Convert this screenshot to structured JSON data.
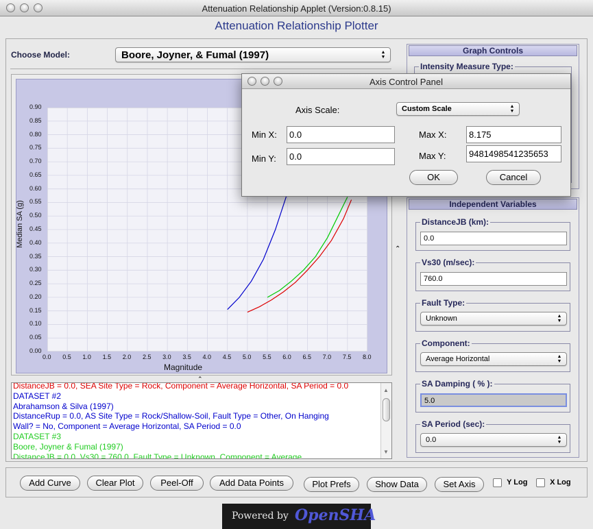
{
  "window": {
    "title": "Attenuation Relationship Applet (Version:0.8.15)"
  },
  "app": {
    "heading": "Attenuation Relationship Plotter"
  },
  "model": {
    "label": "Choose Model:",
    "selected": "Boore, Joyner, & Fumal (1997)"
  },
  "chart_data": {
    "type": "line",
    "xlabel": "Magnitude",
    "ylabel": "Median SA (g)",
    "xlim": [
      0.0,
      8.0
    ],
    "ylim": [
      0.0,
      0.9
    ],
    "xticks": [
      "0.0",
      "0.5",
      "1.0",
      "1.5",
      "2.0",
      "2.5",
      "3.0",
      "3.5",
      "4.0",
      "4.5",
      "5.0",
      "5.5",
      "6.0",
      "6.5",
      "7.0",
      "7.5",
      "8.0"
    ],
    "yticks": [
      "0.00",
      "0.05",
      "0.10",
      "0.15",
      "0.20",
      "0.25",
      "0.30",
      "0.35",
      "0.40",
      "0.45",
      "0.50",
      "0.55",
      "0.60",
      "0.65",
      "0.70",
      "0.75",
      "0.80",
      "0.85",
      "0.90"
    ],
    "grid": true,
    "series": [
      {
        "color": "#0000cc",
        "x": [
          4.5,
          4.8,
          5.1,
          5.4,
          5.7,
          5.9,
          6.1
        ],
        "y": [
          0.155,
          0.2,
          0.26,
          0.34,
          0.45,
          0.54,
          0.63
        ]
      },
      {
        "color": "#00cc00",
        "x": [
          5.5,
          5.8,
          6.1,
          6.4,
          6.7,
          7.0,
          7.3,
          7.5
        ],
        "y": [
          0.2,
          0.225,
          0.26,
          0.3,
          0.35,
          0.42,
          0.51,
          0.57
        ]
      },
      {
        "color": "#dd0000",
        "x": [
          5.0,
          5.3,
          5.6,
          5.9,
          6.2,
          6.5,
          6.8,
          7.1,
          7.4,
          7.6
        ],
        "y": [
          0.145,
          0.165,
          0.19,
          0.22,
          0.255,
          0.3,
          0.35,
          0.41,
          0.49,
          0.56
        ]
      }
    ]
  },
  "info": {
    "lines": [
      {
        "text": "DistanceJB = 0.0, SEA Site Type = Rock, Component = Average Horizontal, SA Period = 0.0",
        "color": "#dd0000"
      },
      {
        "text": "DATASET #2",
        "color": "#0000cc"
      },
      {
        "text": "Abrahamson & Silva (1997)",
        "color": "#0000cc"
      },
      {
        "text": "DistanceRup = 0.0, AS Site Type = Rock/Shallow-Soil, Fault Type = Other, On Hanging",
        "color": "#0000cc"
      },
      {
        "text": "Wall? = No, Component = Average Horizontal, SA Period = 0.0",
        "color": "#0000cc"
      },
      {
        "text": "DATASET #3",
        "color": "#22cc22"
      },
      {
        "text": "Boore, Joyner & Fumal (1997)",
        "color": "#22cc22"
      },
      {
        "text": "DistanceJB = 0.0, Vs30 = 760.0, Fault Type = Unknown, Component = Average",
        "color": "#22cc22"
      }
    ]
  },
  "graph_controls": {
    "header": "Graph Controls",
    "im_type_label": "Intensity Measure Type:"
  },
  "independent": {
    "header": "Independent Variables",
    "distance_label": "DistanceJB (km):",
    "distance_value": "0.0",
    "vs30_label": "Vs30 (m/sec):",
    "vs30_value": "760.0",
    "fault_label": "Fault Type:",
    "fault_value": "Unknown",
    "component_label": "Component:",
    "component_value": "Average Horizontal",
    "damping_label": "SA Damping ( % ):",
    "damping_value": "5.0",
    "period_label": "SA Period (sec):",
    "period_value": "0.0"
  },
  "toolbar": {
    "add_curve": "Add Curve",
    "clear_plot": "Clear Plot",
    "peel_off": "Peel-Off",
    "add_points": "Add Data Points",
    "plot_prefs": "Plot Prefs",
    "show_data": "Show Data",
    "set_axis": "Set Axis",
    "ylog": "Y Log",
    "xlog": "X Log"
  },
  "footer": {
    "powered": "Powered by",
    "brand": "OpenSHA"
  },
  "dialog": {
    "title": "Axis Control Panel",
    "scale_label": "Axis Scale:",
    "scale_value": "Custom Scale",
    "minx_label": "Min X:",
    "minx_value": "0.0",
    "maxx_label": "Max X:",
    "maxx_value": "8.175",
    "miny_label": "Min Y:",
    "miny_value": "0.0",
    "maxy_label": "Max Y:",
    "maxy_value": "9481498541235653",
    "ok": "OK",
    "cancel": "Cancel"
  }
}
